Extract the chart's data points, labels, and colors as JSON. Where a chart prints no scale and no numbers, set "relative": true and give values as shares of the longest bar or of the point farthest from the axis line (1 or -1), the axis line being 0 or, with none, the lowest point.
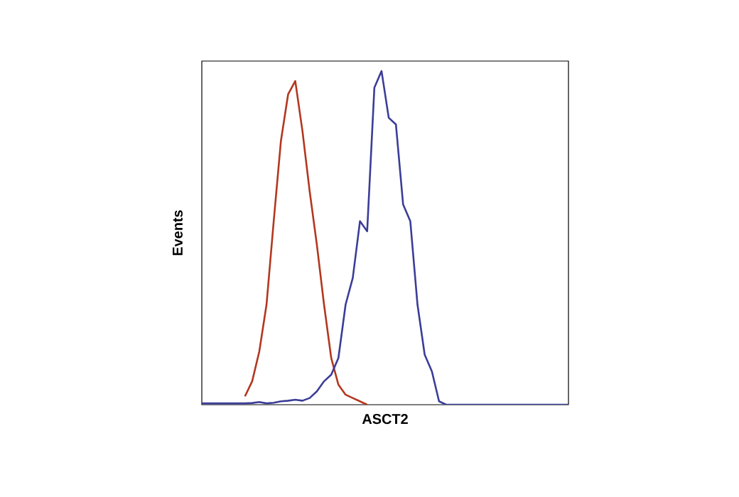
{
  "chart_data": {
    "type": "line",
    "xlabel": "ASCT2",
    "ylabel": "Events",
    "relative": true,
    "categories": [
      null,
      null,
      null,
      null,
      null,
      null,
      null,
      null,
      null,
      null,
      null,
      null,
      null,
      null,
      null,
      null,
      null,
      null,
      null,
      null,
      null,
      null,
      null,
      null,
      null,
      null,
      null,
      null,
      null,
      null,
      null,
      null,
      null,
      null,
      null,
      null,
      null,
      null,
      null,
      null,
      null,
      null,
      null,
      null,
      null,
      null,
      null,
      null,
      null,
      null,
      null,
      null
    ],
    "series": [
      {
        "color": "#b3371f",
        "values": [
          null,
          null,
          null,
          null,
          null,
          null,
          0.025,
          0.07,
          0.16,
          0.3,
          0.55,
          0.79,
          0.93,
          0.97,
          0.82,
          0.64,
          0.48,
          0.3,
          0.14,
          0.06,
          0.03,
          0.02,
          0.01,
          0,
          null,
          null,
          null,
          null,
          null,
          null,
          null,
          null,
          null,
          null,
          null,
          null,
          null,
          null,
          null,
          null,
          null,
          null,
          null,
          null,
          null,
          null,
          null,
          null,
          null,
          null,
          null,
          null
        ]
      },
      {
        "color": "#3b3d98",
        "values": [
          0.004,
          0.004,
          0.004,
          0.004,
          0.004,
          0.004,
          0.004,
          0.005,
          0.008,
          0.004,
          0.006,
          0.01,
          0.012,
          0.015,
          0.012,
          0.02,
          0.04,
          0.07,
          0.09,
          0.14,
          0.3,
          0.38,
          0.55,
          0.52,
          0.95,
          1,
          0.86,
          0.84,
          0.6,
          0.55,
          0.3,
          0.15,
          0.1,
          0.01,
          0,
          0,
          0,
          0,
          0,
          0,
          0,
          0,
          0,
          0,
          0,
          0,
          0,
          0,
          0,
          0,
          0,
          0
        ]
      }
    ]
  }
}
